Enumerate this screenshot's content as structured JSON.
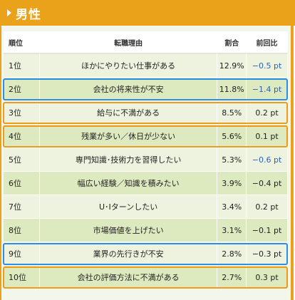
{
  "header": {
    "title": "男性"
  },
  "table": {
    "columns": [
      "順位",
      "転職理由",
      "割合",
      "前回比"
    ],
    "rows": [
      {
        "rank": "1位",
        "reason": "ほかにやりたい仕事がある",
        "pct": "12.9%",
        "diff": "−0.5 pt",
        "diff_color": "blue"
      },
      {
        "rank": "2位",
        "reason": "会社の将来性が不安",
        "pct": "11.8%",
        "diff": "−1.4 pt",
        "diff_color": "blue"
      },
      {
        "rank": "3位",
        "reason": "給与に不満がある",
        "pct": "8.5%",
        "diff": "0.2 pt",
        "diff_color": "plain"
      },
      {
        "rank": "4位",
        "reason": "残業が多い／休日が少ない",
        "pct": "5.6%",
        "diff": "0.1 pt",
        "diff_color": "plain"
      },
      {
        "rank": "5位",
        "reason": "専門知識･技術力を習得したい",
        "pct": "5.3%",
        "diff": "−0.6 pt",
        "diff_color": "blue"
      },
      {
        "rank": "6位",
        "reason": "幅広い経験／知識を積みたい",
        "pct": "3.9%",
        "diff": "−0.4 pt",
        "diff_color": "plain"
      },
      {
        "rank": "7位",
        "reason": "U･Iターンしたい",
        "pct": "3.4%",
        "diff": "0.2 pt",
        "diff_color": "plain"
      },
      {
        "rank": "8位",
        "reason": "市場価値を上げたい",
        "pct": "3.1%",
        "diff": "−0.1 pt",
        "diff_color": "plain"
      },
      {
        "rank": "9位",
        "reason": "業界の先行きが不安",
        "pct": "2.8%",
        "diff": "−0.3 pt",
        "diff_color": "plain"
      },
      {
        "rank": "10位",
        "reason": "会社の評価方法に不満がある",
        "pct": "2.7%",
        "diff": "0.3 pt",
        "diff_color": "plain"
      }
    ]
  },
  "colors": {
    "header_bg": "#e9a21a",
    "row_odd": "#eef3df",
    "row_even": "#dde9bf",
    "highlight_blue": "#2d8ee6",
    "highlight_orange": "#f09a1a",
    "negative_blue_text": "#2b63b5"
  },
  "highlights": [
    {
      "row": 2,
      "color": "blue"
    },
    {
      "row": 3,
      "color": "orange"
    },
    {
      "row": 4,
      "color": "orange"
    },
    {
      "row": 9,
      "color": "blue"
    },
    {
      "row": 10,
      "color": "orange"
    }
  ]
}
